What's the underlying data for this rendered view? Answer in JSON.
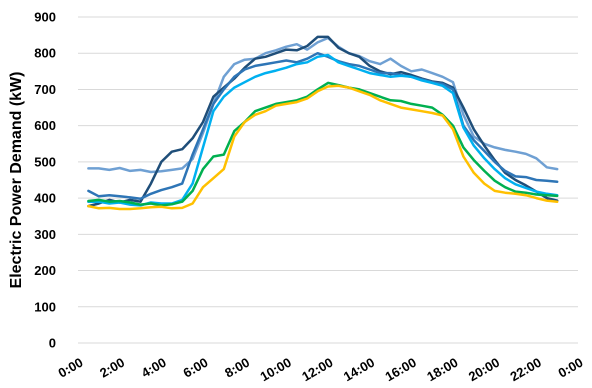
{
  "chart_data": {
    "type": "line",
    "title": "",
    "xlabel": "",
    "ylabel": "Electric Power Demand (kW)",
    "ylim": [
      0,
      900
    ],
    "y_ticks": [
      0,
      100,
      200,
      300,
      400,
      500,
      600,
      700,
      800,
      900
    ],
    "x_ticks": [
      "0:00",
      "2:00",
      "4:00",
      "6:00",
      "8:00",
      "10:00",
      "12:00",
      "14:00",
      "16:00",
      "18:00",
      "20:00",
      "22:00",
      "0:00"
    ],
    "x_unit": "hours",
    "xlim": [
      0,
      24
    ],
    "grid": "horizontal",
    "legend": "none",
    "x": [
      0.5,
      1,
      1.5,
      2,
      2.5,
      3,
      3.5,
      4,
      4.5,
      5,
      5.5,
      6,
      6.5,
      7,
      7.5,
      8,
      8.5,
      9,
      9.5,
      10,
      10.5,
      11,
      11.5,
      12,
      12.5,
      13,
      13.5,
      14,
      14.5,
      15,
      15.5,
      16,
      16.5,
      17,
      17.5,
      18,
      18.5,
      19,
      19.5,
      20,
      20.5,
      21,
      21.5,
      22,
      22.5,
      23
    ],
    "series": [
      {
        "color": "#6fa0d3",
        "values": [
          482,
          482,
          478,
          483,
          475,
          478,
          472,
          474,
          478,
          482,
          508,
          580,
          660,
          735,
          770,
          782,
          785,
          800,
          808,
          818,
          825,
          810,
          830,
          842,
          818,
          800,
          792,
          778,
          770,
          785,
          765,
          750,
          755,
          745,
          735,
          720,
          630,
          570,
          550,
          540,
          533,
          528,
          522,
          510,
          485,
          480
        ]
      },
      {
        "color": "#1f4e79",
        "values": [
          378,
          385,
          395,
          388,
          395,
          390,
          440,
          500,
          528,
          535,
          565,
          610,
          680,
          705,
          730,
          760,
          785,
          790,
          800,
          810,
          808,
          820,
          845,
          845,
          815,
          800,
          790,
          765,
          750,
          742,
          748,
          740,
          730,
          722,
          718,
          705,
          650,
          590,
          545,
          505,
          470,
          450,
          435,
          418,
          400,
          393
        ]
      },
      {
        "color": "#2e75b6",
        "values": [
          420,
          405,
          408,
          405,
          402,
          398,
          412,
          422,
          430,
          440,
          520,
          590,
          660,
          700,
          735,
          755,
          765,
          770,
          775,
          780,
          775,
          785,
          800,
          790,
          778,
          770,
          765,
          755,
          745,
          745,
          740,
          735,
          728,
          720,
          715,
          700,
          600,
          560,
          530,
          500,
          475,
          460,
          458,
          450,
          448,
          445
        ]
      },
      {
        "color": "#00b0f0",
        "values": [
          390,
          390,
          385,
          388,
          382,
          380,
          388,
          385,
          385,
          395,
          440,
          540,
          640,
          680,
          705,
          720,
          735,
          745,
          752,
          760,
          770,
          775,
          790,
          795,
          775,
          765,
          755,
          745,
          740,
          735,
          738,
          735,
          725,
          718,
          710,
          690,
          595,
          545,
          510,
          480,
          455,
          438,
          428,
          418,
          412,
          408
        ]
      },
      {
        "color": "#00b050",
        "values": [
          392,
          395,
          390,
          392,
          388,
          382,
          385,
          380,
          383,
          390,
          420,
          480,
          515,
          520,
          585,
          610,
          640,
          650,
          660,
          665,
          670,
          680,
          700,
          718,
          712,
          705,
          700,
          690,
          680,
          670,
          668,
          660,
          655,
          650,
          630,
          600,
          540,
          505,
          475,
          448,
          430,
          418,
          415,
          410,
          408,
          406
        ]
      },
      {
        "color": "#ffc000",
        "values": [
          378,
          372,
          373,
          370,
          370,
          372,
          375,
          376,
          372,
          373,
          385,
          430,
          455,
          480,
          570,
          610,
          630,
          640,
          655,
          660,
          665,
          675,
          695,
          708,
          710,
          705,
          695,
          685,
          670,
          660,
          650,
          645,
          640,
          635,
          628,
          590,
          515,
          470,
          440,
          420,
          415,
          412,
          408,
          400,
          393,
          390
        ]
      }
    ]
  }
}
